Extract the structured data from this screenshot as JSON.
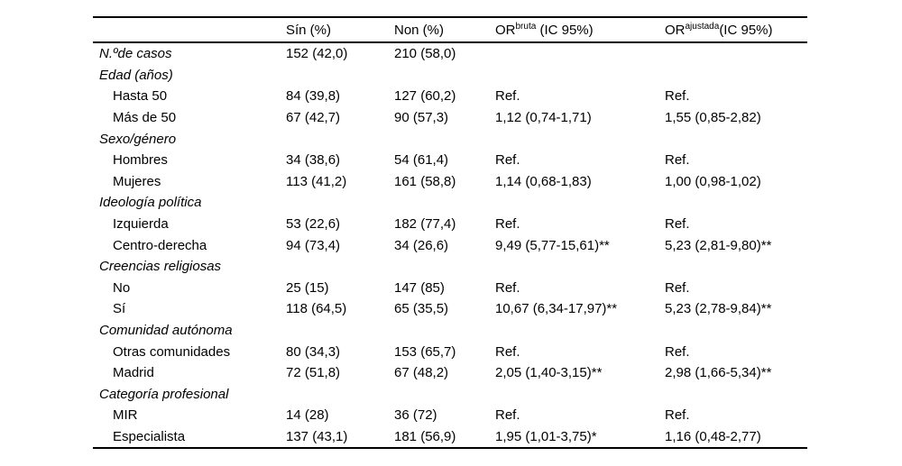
{
  "table": {
    "header": {
      "label_col": "",
      "col_sin": "Sín (%)",
      "col_non": "Non (%)",
      "or_bruta": {
        "base": "OR",
        "sup": "bruta",
        "rest": " (IC 95%)"
      },
      "or_ajustada": {
        "base": "OR",
        "sup": "ajustada",
        "rest": "(IC 95%)"
      }
    },
    "rows": [
      {
        "label": "N.ºde casos",
        "italic": true,
        "indent": false,
        "sin": "152 (42,0)",
        "non": "210 (58,0)",
        "orb": "",
        "ora": ""
      },
      {
        "label": "Edad (años)",
        "italic": true,
        "indent": false,
        "sin": "",
        "non": "",
        "orb": "",
        "ora": ""
      },
      {
        "label": "Hasta 50",
        "italic": false,
        "indent": true,
        "sin": "84 (39,8)",
        "non": "127 (60,2)",
        "orb": "Ref.",
        "ora": "Ref."
      },
      {
        "label": "Más de 50",
        "italic": false,
        "indent": true,
        "sin": "67 (42,7)",
        "non": "90 (57,3)",
        "orb": "1,12 (0,74-1,71)",
        "ora": "1,55 (0,85-2,82)"
      },
      {
        "label": "Sexo/género",
        "italic": true,
        "indent": false,
        "sin": "",
        "non": "",
        "orb": "",
        "ora": ""
      },
      {
        "label": "Hombres",
        "italic": false,
        "indent": true,
        "sin": "34 (38,6)",
        "non": "54 (61,4)",
        "orb": "Ref.",
        "ora": "Ref."
      },
      {
        "label": "Mujeres",
        "italic": false,
        "indent": true,
        "sin": "113 (41,2)",
        "non": "161 (58,8)",
        "orb": "1,14 (0,68-1,83)",
        "ora": "1,00 (0,98-1,02)"
      },
      {
        "label": "Ideología política",
        "italic": true,
        "indent": false,
        "sin": "",
        "non": "",
        "orb": "",
        "ora": ""
      },
      {
        "label": "Izquierda",
        "italic": false,
        "indent": true,
        "sin": "53 (22,6)",
        "non": "182 (77,4)",
        "orb": "Ref.",
        "ora": "Ref."
      },
      {
        "label": "Centro-derecha",
        "italic": false,
        "indent": true,
        "sin": "94 (73,4)",
        "non": "34 (26,6)",
        "orb": "9,49 (5,77-15,61)**",
        "ora": "5,23 (2,81-9,80)**"
      },
      {
        "label": "Creencias religiosas",
        "italic": true,
        "indent": false,
        "sin": "",
        "non": "",
        "orb": "",
        "ora": ""
      },
      {
        "label": "No",
        "italic": false,
        "indent": true,
        "sin": "25 (15)",
        "non": "147 (85)",
        "orb": "Ref.",
        "ora": "Ref."
      },
      {
        "label": "Sí",
        "italic": false,
        "indent": true,
        "sin": "118 (64,5)",
        "non": "65 (35,5)",
        "orb": "10,67 (6,34-17,97)**",
        "ora": "5,23 (2,78-9,84)**"
      },
      {
        "label": "Comunidad autónoma",
        "italic": true,
        "indent": false,
        "sin": "",
        "non": "",
        "orb": "",
        "ora": ""
      },
      {
        "label": "Otras comunidades",
        "italic": false,
        "indent": true,
        "sin": "80 (34,3)",
        "non": "153 (65,7)",
        "orb": "Ref.",
        "ora": "Ref."
      },
      {
        "label": "Madrid",
        "italic": false,
        "indent": true,
        "sin": "72 (51,8)",
        "non": "67 (48,2)",
        "orb": "2,05 (1,40-3,15)**",
        "ora": "2,98 (1,66-5,34)**"
      },
      {
        "label": "Categoría profesional",
        "italic": true,
        "indent": false,
        "sin": "",
        "non": "",
        "orb": "",
        "ora": ""
      },
      {
        "label": "MIR",
        "italic": false,
        "indent": true,
        "sin": "14 (28)",
        "non": "36 (72)",
        "orb": "Ref.",
        "ora": "Ref."
      },
      {
        "label": "Especialista",
        "italic": false,
        "indent": true,
        "sin": "137 (43,1)",
        "non": "181 (56,9)",
        "orb": "1,95 (1,01-3,75)*",
        "ora": "1,16 (0,48-2,77)"
      }
    ]
  },
  "chart_data": {
    "type": "table",
    "title": "",
    "columns": [
      "",
      "Sín (%)",
      "Non (%)",
      "OR bruta (IC 95%)",
      "OR ajustada (IC 95%)"
    ],
    "rows": [
      [
        "N.ºde casos",
        "152 (42,0)",
        "210 (58,0)",
        "",
        ""
      ],
      [
        "Edad (años)",
        "",
        "",
        "",
        ""
      ],
      [
        "Hasta 50",
        "84 (39,8)",
        "127 (60,2)",
        "Ref.",
        "Ref."
      ],
      [
        "Más de 50",
        "67 (42,7)",
        "90 (57,3)",
        "1,12 (0,74-1,71)",
        "1,55 (0,85-2,82)"
      ],
      [
        "Sexo/género",
        "",
        "",
        "",
        ""
      ],
      [
        "Hombres",
        "34 (38,6)",
        "54 (61,4)",
        "Ref.",
        "Ref."
      ],
      [
        "Mujeres",
        "113 (41,2)",
        "161 (58,8)",
        "1,14 (0,68-1,83)",
        "1,00 (0,98-1,02)"
      ],
      [
        "Ideología política",
        "",
        "",
        "",
        ""
      ],
      [
        "Izquierda",
        "53 (22,6)",
        "182 (77,4)",
        "Ref.",
        "Ref."
      ],
      [
        "Centro-derecha",
        "94 (73,4)",
        "34 (26,6)",
        "9,49 (5,77-15,61)**",
        "5,23 (2,81-9,80)**"
      ],
      [
        "Creencias religiosas",
        "",
        "",
        "",
        ""
      ],
      [
        "No",
        "25 (15)",
        "147 (85)",
        "Ref.",
        "Ref."
      ],
      [
        "Sí",
        "118 (64,5)",
        "65 (35,5)",
        "10,67 (6,34-17,97)**",
        "5,23 (2,78-9,84)**"
      ],
      [
        "Comunidad autónoma",
        "",
        "",
        "",
        ""
      ],
      [
        "Otras comunidades",
        "80 (34,3)",
        "153 (65,7)",
        "Ref.",
        "Ref."
      ],
      [
        "Madrid",
        "72 (51,8)",
        "67 (48,2)",
        "2,05 (1,40-3,15)**",
        "2,98 (1,66-5,34)**"
      ],
      [
        "Categoría profesional",
        "",
        "",
        "",
        ""
      ],
      [
        "MIR",
        "14 (28)",
        "36 (72)",
        "Ref.",
        "Ref."
      ],
      [
        "Especialista",
        "137 (43,1)",
        "181 (56,9)",
        "1,95 (1,01-3,75)*",
        "1,16 (0,48-2,77)"
      ]
    ]
  }
}
